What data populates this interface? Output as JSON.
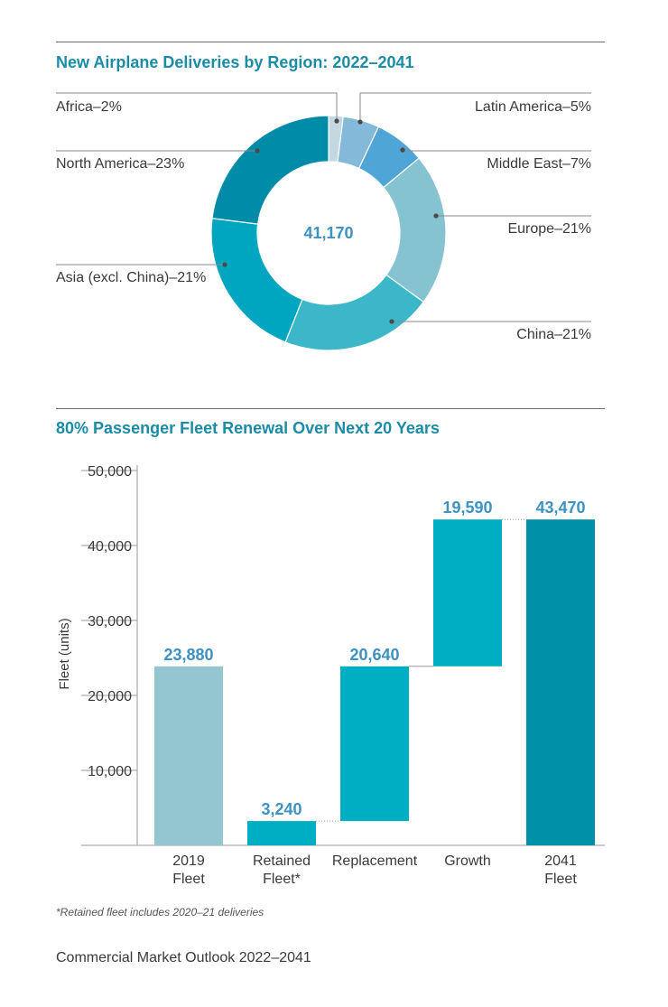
{
  "chart_data": [
    {
      "type": "pie",
      "title": "New Airplane Deliveries by Region: 2022–2041",
      "center_label": "41,170",
      "slices": [
        {
          "label": "Africa–2%",
          "value": 2,
          "color": "#c4d8e2"
        },
        {
          "label": "Latin America–5%",
          "value": 5,
          "color": "#85b9d9"
        },
        {
          "label": "Middle East–7%",
          "value": 7,
          "color": "#4fa6d6"
        },
        {
          "label": "Europe–21%",
          "value": 21,
          "color": "#86c3d0"
        },
        {
          "label": "China–21%",
          "value": 21,
          "color": "#3bb7c9"
        },
        {
          "label": "Asia (excl. China)–21%",
          "value": 21,
          "color": "#00a6bf"
        },
        {
          "label": "North America–23%",
          "value": 23,
          "color": "#008ba8"
        }
      ]
    },
    {
      "type": "bar",
      "subtype": "waterfall",
      "title": "80% Passenger Fleet Renewal Over Next 20 Years",
      "ylabel": "Fleet (units)",
      "ylim": [
        0,
        50000
      ],
      "yticks": [
        "10,000",
        "20,000",
        "30,000",
        "40,000",
        "50,000"
      ],
      "categories": [
        {
          "line1": "2019",
          "line2": "Fleet"
        },
        {
          "line1": "Retained",
          "line2": "Fleet*"
        },
        {
          "line1": "Replacement",
          "line2": ""
        },
        {
          "line1": "Growth",
          "line2": ""
        },
        {
          "line1": "2041",
          "line2": "Fleet"
        }
      ],
      "bars": [
        {
          "base": 0,
          "top": 23880,
          "value_label": "23,880",
          "color": "#93c6d0"
        },
        {
          "base": 0,
          "top": 3240,
          "value_label": "3,240",
          "color": "#00aec4"
        },
        {
          "base": 3240,
          "top": 23880,
          "value_label": "20,640",
          "color": "#00aec4"
        },
        {
          "base": 23880,
          "top": 43470,
          "value_label": "19,590",
          "color": "#00aec4"
        },
        {
          "base": 0,
          "top": 43470,
          "value_label": "43,470",
          "color": "#0090a8"
        }
      ]
    }
  ],
  "footnote": "*Retained fleet includes 2020–21 deliveries",
  "footer": "Commercial Market Outlook 2022–2041"
}
